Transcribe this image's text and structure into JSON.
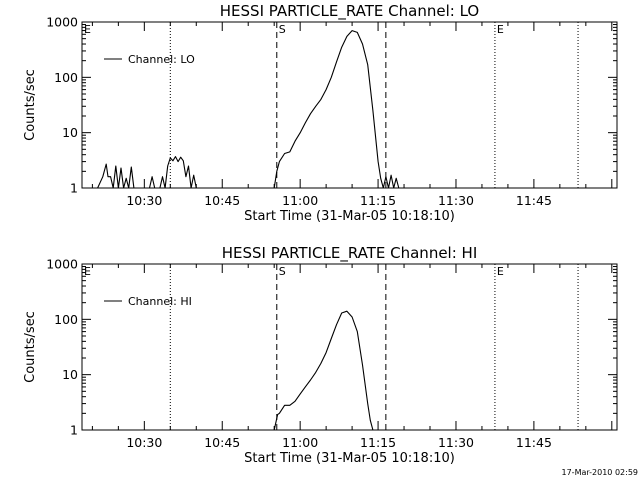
{
  "figure": {
    "timestamp": "17-Mar-2010 02:59"
  },
  "chart_data": [
    {
      "type": "line",
      "title": "HESSI PARTICLE_RATE Channel: LO",
      "xlabel": "Start Time (31-Mar-05 10:18:10)",
      "ylabel": "Counts/sec",
      "y_scale": "log",
      "xlim": [
        "10:18",
        "12:01"
      ],
      "ylim": [
        1,
        1000
      ],
      "xticks": [
        "10:30",
        "10:45",
        "11:00",
        "11:15",
        "11:30",
        "11:45"
      ],
      "yticks": [
        "1",
        "10",
        "100",
        "1000"
      ],
      "legend": "top-left",
      "series": [
        {
          "name": "Channel: LO",
          "x": [
            "10:21",
            "10:22",
            "10:22:40",
            "10:23",
            "10:23:30",
            "10:24",
            "10:24:30",
            "10:25",
            "10:25:30",
            "10:26",
            "10:26:30",
            "10:27",
            "10:27:30",
            "10:28",
            "10:30",
            "10:31",
            "10:31:30",
            "10:32",
            "10:32:20",
            "10:33",
            "10:33:30",
            "10:34",
            "10:34:30",
            "10:35",
            "10:35:30",
            "10:36",
            "10:36:30",
            "10:37",
            "10:37:30",
            "10:38",
            "10:38:30",
            "10:39",
            "10:39:30",
            "10:40",
            "10:41",
            "10:50",
            "10:55",
            "10:55:30",
            "10:56",
            "10:57",
            "10:58",
            "10:59",
            "11:00",
            "11:01",
            "11:02",
            "11:03",
            "11:04",
            "11:05",
            "11:06",
            "11:07",
            "11:08",
            "11:09",
            "11:10",
            "11:11",
            "11:12",
            "11:13",
            "11:14",
            "11:15",
            "11:15:30",
            "11:16",
            "11:16:30",
            "11:17",
            "11:17:30",
            "11:18",
            "11:18:30",
            "11:19",
            "11:25"
          ],
          "y": [
            1,
            1.6,
            2.7,
            1.6,
            1.6,
            1,
            2.5,
            1,
            2.3,
            1,
            1.5,
            1,
            2.4,
            1,
            1,
            1,
            1.6,
            1,
            1,
            1,
            1.6,
            1,
            2.5,
            3.5,
            3.1,
            3.7,
            3.0,
            3.6,
            3.1,
            1.6,
            2.5,
            1,
            1.7,
            1,
            1,
            1,
            1,
            2,
            3.0,
            4.2,
            4.5,
            7,
            10,
            15,
            22,
            30,
            40,
            60,
            100,
            190,
            350,
            550,
            700,
            650,
            400,
            170,
            25,
            3,
            1.5,
            1,
            1.6,
            1,
            1.7,
            1,
            1.5,
            1,
            1
          ]
        }
      ]
    },
    {
      "type": "line",
      "title": "HESSI PARTICLE_RATE Channel: HI",
      "xlabel": "Start Time (31-Mar-05 10:18:10)",
      "ylabel": "Counts/sec",
      "y_scale": "log",
      "xlim": [
        "10:18",
        "12:01"
      ],
      "ylim": [
        1,
        1000
      ],
      "xticks": [
        "10:30",
        "10:45",
        "11:00",
        "11:15",
        "11:30",
        "11:45"
      ],
      "yticks": [
        "1",
        "10",
        "100",
        "1000"
      ],
      "legend": "top-left",
      "series": [
        {
          "name": "Channel: HI",
          "x": [
            "10:21",
            "10:55",
            "10:55:40",
            "10:56",
            "10:57",
            "10:58",
            "10:59",
            "11:00",
            "11:01",
            "11:02",
            "11:03",
            "11:04",
            "11:05",
            "11:06",
            "11:07",
            "11:08",
            "11:09",
            "11:10",
            "11:11",
            "11:12",
            "11:13",
            "11:13:30",
            "11:14",
            "11:25"
          ],
          "y": [
            1,
            1,
            1.9,
            2.0,
            2.8,
            2.8,
            3.3,
            4.5,
            6,
            8,
            11,
            16,
            25,
            45,
            80,
            130,
            140,
            110,
            60,
            15,
            3,
            1.5,
            1,
            1
          ]
        }
      ]
    }
  ],
  "markers": {
    "dashed": [
      "10:55:30",
      "11:16:30"
    ],
    "dotted": [
      "10:35",
      "11:37:30",
      "11:53:30"
    ],
    "labels": [
      {
        "text": "S",
        "at": "10:55:30"
      },
      {
        "text": "E",
        "at": "11:37:30"
      },
      {
        "text": "E",
        "at": "10:18"
      }
    ]
  }
}
